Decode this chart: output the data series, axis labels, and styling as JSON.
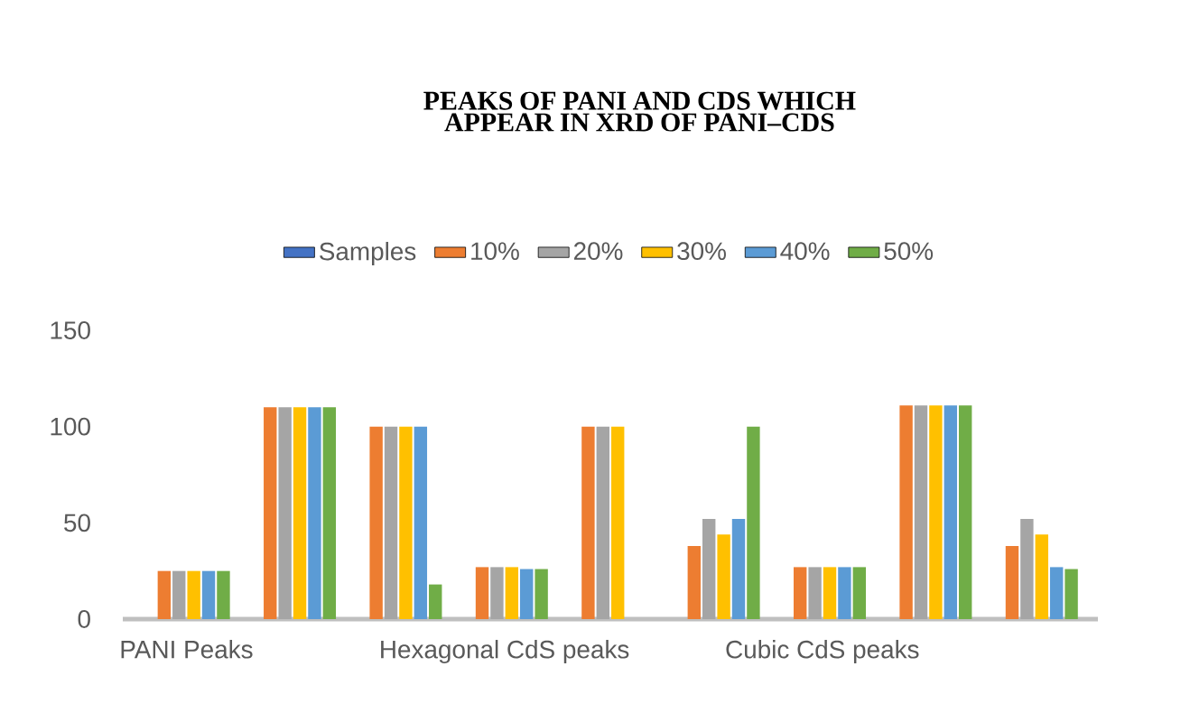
{
  "chart_data": {
    "type": "bar",
    "title": "PEAKS OF PANI AND CDS WHICH APPEAR IN XRD OF PANI–CDS",
    "categories": [
      "PANI Peaks",
      null,
      null,
      "Hexagonal CdS peaks",
      null,
      null,
      "Cubic CdS peaks",
      null,
      null
    ],
    "series": [
      {
        "name": "Samples",
        "color": "#4472c4",
        "values": [
          null,
          null,
          null,
          null,
          null,
          null,
          null,
          null,
          null
        ]
      },
      {
        "name": "10%",
        "color": "#ed7d31",
        "values": [
          25,
          110,
          100,
          27,
          100,
          38,
          27,
          111,
          38
        ]
      },
      {
        "name": "20%",
        "color": "#a5a5a5",
        "values": [
          25,
          110,
          100,
          27,
          100,
          52,
          27,
          111,
          52
        ]
      },
      {
        "name": "30%",
        "color": "#ffc000",
        "values": [
          25,
          110,
          100,
          27,
          100,
          44,
          27,
          111,
          44
        ]
      },
      {
        "name": "40%",
        "color": "#5b9bd5",
        "values": [
          25,
          110,
          100,
          26,
          null,
          52,
          27,
          111,
          27
        ]
      },
      {
        "name": "50%",
        "color": "#70ad47",
        "values": [
          25,
          110,
          18,
          26,
          null,
          100,
          27,
          111,
          26
        ]
      }
    ],
    "ylim": [
      0,
      150
    ],
    "yticks": [
      0,
      50,
      100,
      150
    ],
    "legend": "top"
  }
}
